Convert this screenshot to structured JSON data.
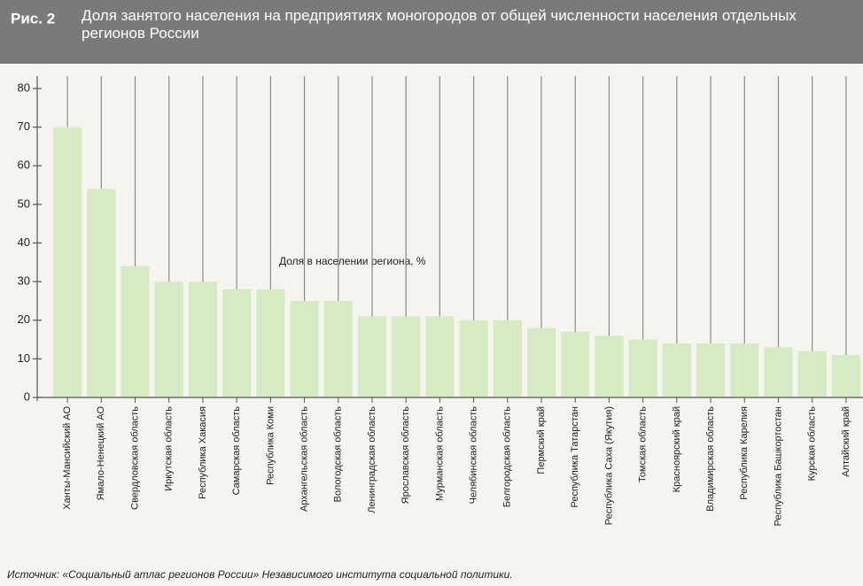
{
  "chart_data": {
    "type": "bar",
    "figure_label": "Рис. 2",
    "title": "Доля занятого населения на предприятиях моногородов от общей численности населения отдельных регионов России",
    "annotation": "Доля в населении региона, %",
    "source": "Источник: «Социальный атлас регионов России» Независимого института социальной политики.",
    "categories": [
      "Ханты-Мансийский АО",
      "Ямало-Ненецкий АО",
      "Свердловская область",
      "Иркутская область",
      "Республика Хакасия",
      "Самарская область",
      "Республика Коми",
      "Архангельская область",
      "Вологодская область",
      "Ленинградская область",
      "Ярославская область",
      "Мурманская область",
      "Челябинская область",
      "Белгородская область",
      "Пермский край",
      "Республика Татарстан",
      "Республика Саха (Якутия)",
      "Томская область",
      "Красноярский край",
      "Владимирская область",
      "Республика Карелия",
      "Республика Башкортостан",
      "Курская область",
      "Алтайский край"
    ],
    "values": [
      70,
      54,
      34,
      30,
      30,
      28,
      28,
      25,
      25,
      21,
      21,
      21,
      20,
      20,
      18,
      17,
      16,
      15,
      14,
      14,
      14,
      13,
      12,
      11
    ],
    "color": "#d6eac4",
    "ylim": [
      0,
      80
    ],
    "yticks": [
      0,
      10,
      20,
      30,
      40,
      50,
      60,
      70,
      80
    ],
    "grid": true
  }
}
